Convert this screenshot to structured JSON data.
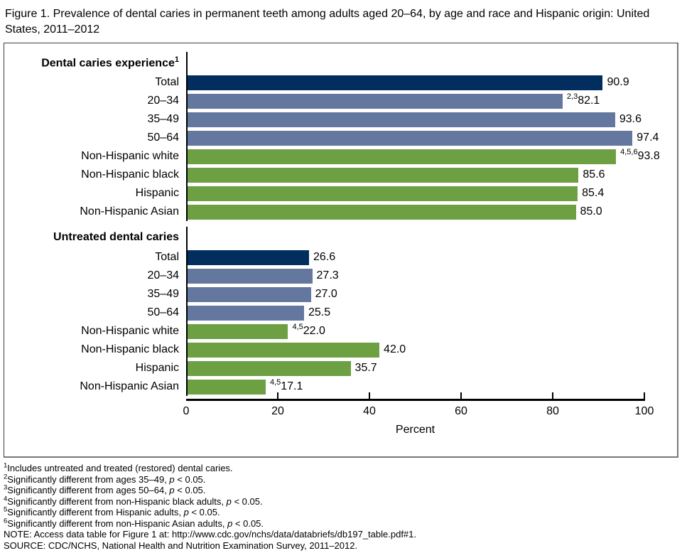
{
  "title": "Figure 1. Prevalence of dental caries in permanent teeth among adults aged 20–64, by age and race and Hispanic origin: United States, 2011–2012",
  "chart_data": {
    "type": "bar",
    "orientation": "horizontal",
    "xlabel": "Percent",
    "xlim": [
      0,
      100
    ],
    "xticks": [
      0,
      20,
      40,
      60,
      80,
      100
    ],
    "grid": false,
    "legend": "none",
    "colors": {
      "total": "#012d5f",
      "age": "#64779f",
      "race": "#6ca043"
    },
    "groups": [
      {
        "heading": "Dental caries experience",
        "heading_sup": "1",
        "bars": [
          {
            "label": "Total",
            "value": 90.9,
            "value_label": "90.9",
            "sup": "",
            "color_key": "total"
          },
          {
            "label": "20–34",
            "value": 82.1,
            "value_label": "82.1",
            "sup": "2,3",
            "color_key": "age"
          },
          {
            "label": "35–49",
            "value": 93.6,
            "value_label": "93.6",
            "sup": "",
            "color_key": "age"
          },
          {
            "label": "50–64",
            "value": 97.4,
            "value_label": "97.4",
            "sup": "",
            "color_key": "age"
          },
          {
            "label": "Non-Hispanic white",
            "value": 93.8,
            "value_label": "93.8",
            "sup": "4,5,6",
            "color_key": "race"
          },
          {
            "label": "Non-Hispanic black",
            "value": 85.6,
            "value_label": "85.6",
            "sup": "",
            "color_key": "race"
          },
          {
            "label": "Hispanic",
            "value": 85.4,
            "value_label": "85.4",
            "sup": "",
            "color_key": "race"
          },
          {
            "label": "Non-Hispanic Asian",
            "value": 85.0,
            "value_label": "85.0",
            "sup": "",
            "color_key": "race"
          }
        ]
      },
      {
        "heading": "Untreated dental caries",
        "heading_sup": "",
        "bars": [
          {
            "label": "Total",
            "value": 26.6,
            "value_label": "26.6",
            "sup": "",
            "color_key": "total"
          },
          {
            "label": "20–34",
            "value": 27.3,
            "value_label": "27.3",
            "sup": "",
            "color_key": "age"
          },
          {
            "label": "35–49",
            "value": 27.0,
            "value_label": "27.0",
            "sup": "",
            "color_key": "age"
          },
          {
            "label": "50–64",
            "value": 25.5,
            "value_label": "25.5",
            "sup": "",
            "color_key": "age"
          },
          {
            "label": "Non-Hispanic white",
            "value": 22.0,
            "value_label": "22.0",
            "sup": "4,5",
            "color_key": "race"
          },
          {
            "label": "Non-Hispanic black",
            "value": 42.0,
            "value_label": "42.0",
            "sup": "",
            "color_key": "race"
          },
          {
            "label": "Hispanic",
            "value": 35.7,
            "value_label": "35.7",
            "sup": "",
            "color_key": "race"
          },
          {
            "label": "Non-Hispanic Asian",
            "value": 17.1,
            "value_label": "17.1",
            "sup": "4,5",
            "color_key": "race"
          }
        ]
      }
    ]
  },
  "footnotes": [
    {
      "sup": "1",
      "text": "Includes untreated and treated (restored) dental caries."
    },
    {
      "sup": "2",
      "text": "Significantly different from ages 35–49, p < 0.05."
    },
    {
      "sup": "3",
      "text": "Significantly different from ages 50–64, p < 0.05."
    },
    {
      "sup": "4",
      "text": "Significantly different from non-Hispanic black adults, p < 0.05."
    },
    {
      "sup": "5",
      "text": "Significantly different from Hispanic adults, p < 0.05."
    },
    {
      "sup": "6",
      "text": "Significantly different from non-Hispanic Asian adults, p < 0.05."
    },
    {
      "sup": "",
      "text": "NOTE: Access data table for Figure 1 at: http://www.cdc.gov/nchs/data/databriefs/db197_table.pdf#1."
    },
    {
      "sup": "",
      "text": "SOURCE: CDC/NCHS, National Health and Nutrition Examination Survey, 2011–2012."
    }
  ]
}
